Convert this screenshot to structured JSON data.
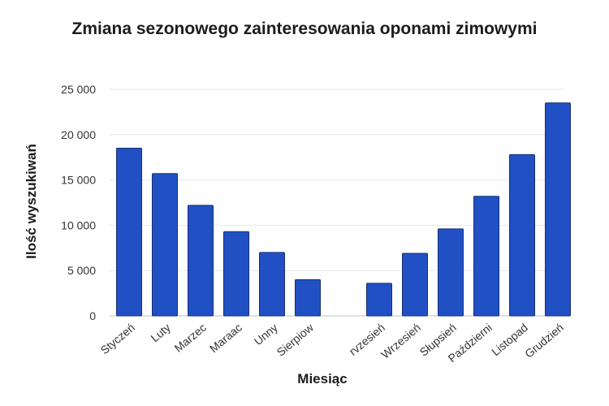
{
  "chart_data": {
    "type": "bar",
    "title": "Zmiana sezonowego zainteresowania oponami zimowymi",
    "xlabel": "Miesiąc",
    "ylabel": "Ilość wyszukiwań",
    "ylim": [
      0,
      25000
    ],
    "yticks": [
      0,
      5000,
      10000,
      15000,
      20000,
      25000
    ],
    "ytick_labels": [
      "0",
      "5 000",
      "10 000",
      "15 000",
      "20 000",
      "25 000"
    ],
    "grid": true,
    "categories": [
      "Styczeń",
      "Luty",
      "Marzec",
      "Maraac",
      "Unny",
      "Sierpiow",
      "",
      "rvzesień",
      "Wrzesień",
      "Słupsień",
      "Październi",
      "Listopad",
      "Grudzień"
    ],
    "values": [
      18500,
      15700,
      12200,
      9300,
      7000,
      4000,
      null,
      3600,
      6900,
      9600,
      13200,
      17800,
      23500
    ],
    "bar_color": "#2150c5",
    "bar_edge": "#152f6f",
    "grid_color": "#e6e6e6"
  }
}
